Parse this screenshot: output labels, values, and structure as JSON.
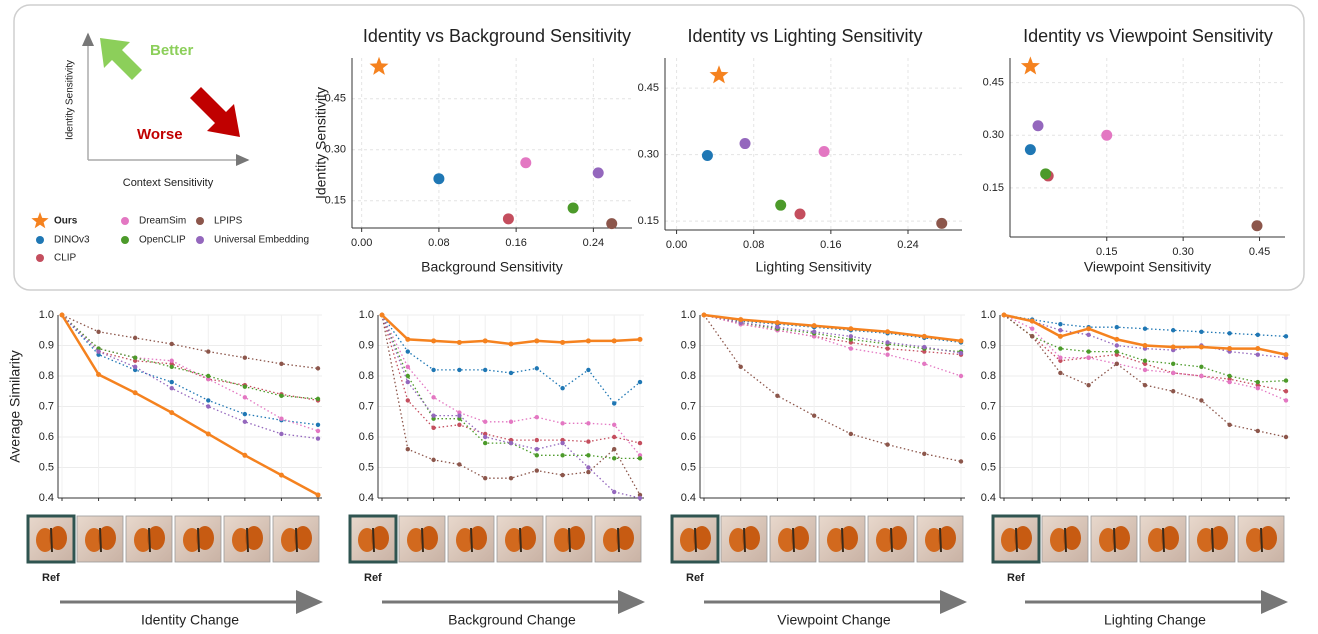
{
  "schematic": {
    "y_label": "Identity Sensitivity",
    "x_label": "Context Sensitivity",
    "better": "Better",
    "worse": "Worse"
  },
  "strips": [
    {
      "ref": "Ref",
      "caption": "Identity Change"
    },
    {
      "ref": "Ref",
      "caption": "Background Change"
    },
    {
      "ref": "Ref",
      "caption": "Viewpoint Change"
    },
    {
      "ref": "Ref",
      "caption": "Lighting Change"
    }
  ],
  "chart_data": [
    {
      "type": "scatter",
      "title": "Identity vs Background Sensitivity",
      "x_label": "Background Sensitivity",
      "y_label": "Identity Sensitivity",
      "xlim": [
        -0.01,
        0.28
      ],
      "xticks": [
        {
          "value": 0,
          "label": "0.00"
        },
        0.08,
        0.16,
        0.24
      ],
      "ylim": [
        0.07,
        0.57
      ],
      "yticks": [
        0.15,
        {
          "value": 0.3,
          "label": "0.30"
        },
        0.45
      ],
      "grid": true,
      "series": [
        {
          "name": "Ours",
          "color": "#f5821f",
          "marker": "star",
          "x": [
            0.018
          ],
          "values": [
            0.544
          ]
        },
        {
          "name": "DINOv3",
          "color": "#1f77b4",
          "marker": "circle",
          "x": [
            0.08
          ],
          "values": [
            0.215
          ]
        },
        {
          "name": "CLIP",
          "color": "#c44e5e",
          "marker": "circle",
          "x": [
            0.152
          ],
          "values": [
            0.097
          ]
        },
        {
          "name": "DreamSim",
          "color": "#e377c2",
          "marker": "circle",
          "x": [
            0.17
          ],
          "values": [
            0.262
          ]
        },
        {
          "name": "OpenCLIP",
          "color": "#4c9a2a",
          "marker": "circle",
          "x": [
            0.219
          ],
          "values": [
            0.129
          ]
        },
        {
          "name": "LPIPS",
          "color": "#8c564b",
          "marker": "circle",
          "x": [
            0.259
          ],
          "values": [
            0.083
          ]
        },
        {
          "name": "Universal Embedding",
          "color": "#9467bd",
          "marker": "circle",
          "x": [
            0.245
          ],
          "values": [
            0.232
          ]
        }
      ]
    },
    {
      "type": "scatter",
      "title": "Identity vs Lighting Sensitivity",
      "x_label": "Lighting Sensitivity",
      "xlim": [
        -0.012,
        0.296
      ],
      "xticks": [
        {
          "value": 0,
          "label": "0.00"
        },
        0.08,
        0.16,
        0.24
      ],
      "ylim": [
        0.13,
        0.518
      ],
      "yticks": [
        0.15,
        {
          "value": 0.3,
          "label": "0.30"
        },
        0.45
      ],
      "grid": true,
      "series": [
        {
          "name": "Ours",
          "color": "#f5821f",
          "marker": "star",
          "x": [
            0.044
          ],
          "values": [
            0.479
          ]
        },
        {
          "name": "DINOv3",
          "color": "#1f77b4",
          "marker": "circle",
          "x": [
            0.032
          ],
          "values": [
            0.298
          ]
        },
        {
          "name": "CLIP",
          "color": "#c44e5e",
          "marker": "circle",
          "x": [
            0.128
          ],
          "values": [
            0.166
          ]
        },
        {
          "name": "DreamSim",
          "color": "#e377c2",
          "marker": "circle",
          "x": [
            0.153
          ],
          "values": [
            0.307
          ]
        },
        {
          "name": "OpenCLIP",
          "color": "#4c9a2a",
          "marker": "circle",
          "x": [
            0.108
          ],
          "values": [
            0.186
          ]
        },
        {
          "name": "LPIPS",
          "color": "#8c564b",
          "marker": "circle",
          "x": [
            0.275
          ],
          "values": [
            0.145
          ]
        },
        {
          "name": "Universal Embedding",
          "color": "#9467bd",
          "marker": "circle",
          "x": [
            0.071
          ],
          "values": [
            0.325
          ]
        }
      ]
    },
    {
      "type": "scatter",
      "title": "Identity vs Viewpoint Sensitivity",
      "x_label": "Viewpoint Sensitivity",
      "xlim": [
        -0.04,
        0.5
      ],
      "xticks": [
        0.15,
        {
          "value": 0.3,
          "label": "0.30"
        },
        0.45
      ],
      "ylim": [
        0.01,
        0.52
      ],
      "yticks": [
        0.15,
        {
          "value": 0.3,
          "label": "0.30"
        },
        0.45
      ],
      "grid": true,
      "series": [
        {
          "name": "Ours",
          "color": "#f5821f",
          "marker": "star",
          "x": [
            0.0
          ],
          "values": [
            0.496
          ]
        },
        {
          "name": "DINOv3",
          "color": "#1f77b4",
          "marker": "circle",
          "x": [
            0.0
          ],
          "values": [
            0.259
          ]
        },
        {
          "name": "CLIP",
          "color": "#c44e5e",
          "marker": "circle",
          "x": [
            0.035
          ],
          "values": [
            0.184
          ]
        },
        {
          "name": "DreamSim",
          "color": "#e377c2",
          "marker": "circle",
          "x": [
            0.15
          ],
          "values": [
            0.3
          ]
        },
        {
          "name": "OpenCLIP",
          "color": "#4c9a2a",
          "marker": "circle",
          "x": [
            0.03
          ],
          "values": [
            0.19
          ]
        },
        {
          "name": "LPIPS",
          "color": "#8c564b",
          "marker": "circle",
          "x": [
            0.445
          ],
          "values": [
            0.042
          ]
        },
        {
          "name": "Universal Embedding",
          "color": "#9467bd",
          "marker": "circle",
          "x": [
            0.015
          ],
          "values": [
            0.327
          ]
        }
      ]
    },
    {
      "type": "line",
      "y_label": "Average Similarity",
      "categories": [
        null,
        null,
        null,
        null,
        null,
        null,
        null,
        null
      ],
      "ylim": [
        0.4,
        1.0
      ],
      "yticks": [
        0.4,
        0.5,
        0.6,
        0.7,
        0.8,
        0.9,
        {
          "value": 1,
          "label": "1.0"
        }
      ],
      "grid": true,
      "series": [
        {
          "name": "DINOv3",
          "color": "#1f77b4",
          "values": [
            1,
            0.87,
            0.82,
            0.78,
            0.72,
            0.675,
            0.655,
            0.64
          ]
        },
        {
          "name": "CLIP",
          "color": "#c44e5e",
          "values": [
            1,
            0.88,
            0.85,
            0.84,
            0.79,
            0.77,
            0.74,
            0.72
          ]
        },
        {
          "name": "DreamSim",
          "color": "#e377c2",
          "values": [
            1,
            0.89,
            0.86,
            0.85,
            0.79,
            0.73,
            0.66,
            0.62
          ]
        },
        {
          "name": "OpenCLIP",
          "color": "#4c9a2a",
          "values": [
            1,
            0.89,
            0.86,
            0.83,
            0.8,
            0.765,
            0.735,
            0.725
          ]
        },
        {
          "name": "LPIPS",
          "color": "#8c564b",
          "values": [
            1,
            0.945,
            0.925,
            0.905,
            0.88,
            0.86,
            0.84,
            0.825
          ]
        },
        {
          "name": "Universal Embedding",
          "color": "#9467bd",
          "values": [
            1,
            0.88,
            0.83,
            0.76,
            0.7,
            0.65,
            0.61,
            0.595
          ]
        },
        {
          "name": "Ours",
          "color": "#f5821f",
          "values": [
            1,
            0.805,
            0.745,
            0.68,
            0.61,
            0.54,
            0.475,
            0.41
          ]
        }
      ]
    },
    {
      "type": "line",
      "categories": [
        null,
        null,
        null,
        null,
        null,
        null,
        null,
        null,
        null,
        null,
        null
      ],
      "ylim": [
        0.4,
        1.0
      ],
      "yticks": [
        0.4,
        0.5,
        0.6,
        0.7,
        0.8,
        0.9,
        {
          "value": 1,
          "label": "1.0"
        }
      ],
      "grid": true,
      "series": [
        {
          "name": "DINOv3",
          "color": "#1f77b4",
          "values": [
            1,
            0.88,
            0.82,
            0.82,
            0.82,
            0.81,
            0.825,
            0.76,
            0.82,
            0.71,
            0.78
          ]
        },
        {
          "name": "CLIP",
          "color": "#c44e5e",
          "values": [
            1,
            0.72,
            0.63,
            0.64,
            0.61,
            0.59,
            0.59,
            0.59,
            0.585,
            0.6,
            0.58
          ]
        },
        {
          "name": "DreamSim",
          "color": "#e377c2",
          "values": [
            1,
            0.83,
            0.73,
            0.68,
            0.65,
            0.65,
            0.665,
            0.645,
            0.645,
            0.64,
            0.54
          ]
        },
        {
          "name": "OpenCLIP",
          "color": "#4c9a2a",
          "values": [
            1,
            0.8,
            0.66,
            0.66,
            0.58,
            0.58,
            0.54,
            0.54,
            0.54,
            0.53,
            0.53
          ]
        },
        {
          "name": "LPIPS",
          "color": "#8c564b",
          "values": [
            1,
            0.56,
            0.525,
            0.51,
            0.465,
            0.465,
            0.49,
            0.475,
            0.485,
            0.56,
            0.41
          ]
        },
        {
          "name": "Universal Embedding",
          "color": "#9467bd",
          "values": [
            1,
            0.78,
            0.67,
            0.67,
            0.6,
            0.58,
            0.56,
            0.58,
            0.5,
            0.42,
            0.4
          ]
        },
        {
          "name": "Ours",
          "color": "#f5821f",
          "values": [
            1,
            0.92,
            0.915,
            0.91,
            0.915,
            0.905,
            0.915,
            0.91,
            0.915,
            0.915,
            0.92
          ]
        }
      ]
    },
    {
      "type": "line",
      "categories": [
        null,
        null,
        null,
        null,
        null,
        null,
        null,
        null
      ],
      "ylim": [
        0.4,
        1.0
      ],
      "yticks": [
        0.4,
        0.5,
        0.6,
        0.7,
        0.8,
        0.9,
        {
          "value": 1,
          "label": "1.0"
        }
      ],
      "grid": true,
      "series": [
        {
          "name": "DINOv3",
          "color": "#1f77b4",
          "values": [
            1,
            0.98,
            0.97,
            0.96,
            0.95,
            0.94,
            0.925,
            0.91
          ]
        },
        {
          "name": "CLIP",
          "color": "#c44e5e",
          "values": [
            1,
            0.97,
            0.95,
            0.93,
            0.91,
            0.89,
            0.88,
            0.87
          ]
        },
        {
          "name": "DreamSim",
          "color": "#e377c2",
          "values": [
            1,
            0.97,
            0.95,
            0.93,
            0.89,
            0.87,
            0.84,
            0.8
          ]
        },
        {
          "name": "OpenCLIP",
          "color": "#4c9a2a",
          "values": [
            1,
            0.975,
            0.955,
            0.94,
            0.92,
            0.905,
            0.89,
            0.88
          ]
        },
        {
          "name": "LPIPS",
          "color": "#8c564b",
          "values": [
            1,
            0.83,
            0.735,
            0.67,
            0.61,
            0.575,
            0.545,
            0.52
          ]
        },
        {
          "name": "Universal Embedding",
          "color": "#9467bd",
          "values": [
            1,
            0.975,
            0.96,
            0.945,
            0.93,
            0.91,
            0.895,
            0.875
          ]
        },
        {
          "name": "Ours",
          "color": "#f5821f",
          "values": [
            1,
            0.985,
            0.975,
            0.965,
            0.955,
            0.945,
            0.93,
            0.915
          ]
        }
      ]
    },
    {
      "type": "line",
      "categories": [
        null,
        null,
        null,
        null,
        null,
        null,
        null,
        null,
        null,
        null,
        null
      ],
      "ylim": [
        0.4,
        1.0
      ],
      "yticks": [
        0.4,
        0.5,
        0.6,
        0.7,
        0.8,
        0.9,
        {
          "value": 1,
          "label": "1.0"
        }
      ],
      "grid": true,
      "series": [
        {
          "name": "DINOv3",
          "color": "#1f77b4",
          "values": [
            1,
            0.985,
            0.97,
            0.96,
            0.96,
            0.955,
            0.95,
            0.945,
            0.94,
            0.935,
            0.93
          ]
        },
        {
          "name": "CLIP",
          "color": "#c44e5e",
          "values": [
            1,
            0.93,
            0.85,
            0.86,
            0.87,
            0.84,
            0.81,
            0.8,
            0.79,
            0.77,
            0.75
          ]
        },
        {
          "name": "DreamSim",
          "color": "#e377c2",
          "values": [
            1,
            0.955,
            0.86,
            0.86,
            0.84,
            0.82,
            0.81,
            0.8,
            0.78,
            0.76,
            0.72
          ]
        },
        {
          "name": "OpenCLIP",
          "color": "#4c9a2a",
          "values": [
            1,
            0.93,
            0.89,
            0.88,
            0.88,
            0.85,
            0.84,
            0.83,
            0.8,
            0.78,
            0.785
          ]
        },
        {
          "name": "LPIPS",
          "color": "#8c564b",
          "values": [
            1,
            0.93,
            0.81,
            0.77,
            0.84,
            0.77,
            0.75,
            0.72,
            0.64,
            0.62,
            0.6
          ]
        },
        {
          "name": "Universal Embedding",
          "color": "#9467bd",
          "values": [
            1,
            0.98,
            0.95,
            0.935,
            0.9,
            0.89,
            0.885,
            0.9,
            0.88,
            0.87,
            0.86
          ]
        },
        {
          "name": "Ours",
          "color": "#f5821f",
          "values": [
            1,
            0.98,
            0.93,
            0.955,
            0.92,
            0.9,
            0.895,
            0.895,
            0.89,
            0.89,
            0.87
          ]
        }
      ]
    }
  ]
}
